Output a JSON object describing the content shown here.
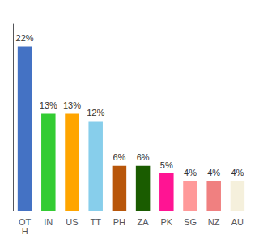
{
  "chart_data": {
    "type": "bar",
    "categories": [
      "OT\nH",
      "IN",
      "US",
      "TT",
      "PH",
      "ZA",
      "PK",
      "SG",
      "NZ",
      "AU"
    ],
    "values": [
      22,
      13,
      13,
      12,
      6,
      6,
      5,
      4,
      4,
      4
    ],
    "value_labels": [
      "22%",
      "13%",
      "13%",
      "12%",
      "6%",
      "6%",
      "5%",
      "4%",
      "4%",
      "4%"
    ],
    "colors": [
      "#4472c4",
      "#33cc33",
      "#ffa500",
      "#87ceeb",
      "#b8560a",
      "#1a5c00",
      "#ff1493",
      "#ff9999",
      "#f08080",
      "#f5f0dc"
    ],
    "ylim": [
      0,
      25
    ],
    "grid": false,
    "data_labels": true,
    "tick_labels": "x"
  }
}
